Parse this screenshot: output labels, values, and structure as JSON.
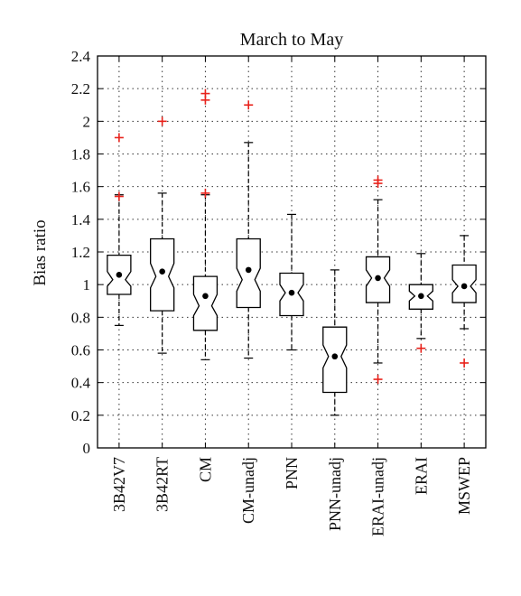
{
  "chart_data": {
    "type": "boxplot",
    "title": "March to May",
    "xlabel": "",
    "ylabel": "Bias ratio",
    "ylim": [
      0,
      2.4
    ],
    "yticks": [
      0,
      0.2,
      0.4,
      0.6,
      0.8,
      1,
      1.2,
      1.4,
      1.6,
      1.8,
      2,
      2.2,
      2.4
    ],
    "ytick_labels": [
      "0",
      "0.2",
      "0.4",
      "0.6",
      "0.8",
      "1",
      "1.2",
      "1.4",
      "1.6",
      "1.8",
      "2",
      "2.2",
      "2.4"
    ],
    "grid": true,
    "notched": true,
    "outlier_color": "#e8221b",
    "box_color": "#000000",
    "categories": [
      "3B42V7",
      "3B42RT",
      "CM",
      "CM-unadj",
      "PNN",
      "PNN-unadj",
      "ERAI-unadj",
      "ERAI",
      "MSWEP"
    ],
    "boxes": [
      {
        "whisker_low": 0.75,
        "q1": 0.94,
        "median": 1.03,
        "q3": 1.18,
        "whisker_high": 1.55,
        "mean": 1.06,
        "notch_low": 0.99,
        "notch_high": 1.08,
        "outliers": [
          1.54,
          1.9
        ]
      },
      {
        "whisker_low": 0.58,
        "q1": 0.84,
        "median": 1.05,
        "q3": 1.28,
        "whisker_high": 1.56,
        "mean": 1.08,
        "notch_low": 0.98,
        "notch_high": 1.13,
        "outliers": [
          2.0
        ]
      },
      {
        "whisker_low": 0.54,
        "q1": 0.72,
        "median": 0.87,
        "q3": 1.05,
        "whisker_high": 1.55,
        "mean": 0.93,
        "notch_low": 0.81,
        "notch_high": 0.94,
        "outliers": [
          1.56,
          2.13,
          2.17
        ]
      },
      {
        "whisker_low": 0.55,
        "q1": 0.86,
        "median": 1.03,
        "q3": 1.28,
        "whisker_high": 1.87,
        "mean": 1.09,
        "notch_low": 0.96,
        "notch_high": 1.1,
        "outliers": [
          2.1
        ]
      },
      {
        "whisker_low": 0.6,
        "q1": 0.81,
        "median": 0.95,
        "q3": 1.07,
        "whisker_high": 1.43,
        "mean": 0.95,
        "notch_low": 0.9,
        "notch_high": 1.0,
        "outliers": []
      },
      {
        "whisker_low": 0.2,
        "q1": 0.34,
        "median": 0.56,
        "q3": 0.74,
        "whisker_high": 1.09,
        "mean": 0.56,
        "notch_low": 0.49,
        "notch_high": 0.63,
        "outliers": []
      },
      {
        "whisker_low": 0.52,
        "q1": 0.89,
        "median": 1.04,
        "q3": 1.17,
        "whisker_high": 1.52,
        "mean": 1.04,
        "notch_low": 0.99,
        "notch_high": 1.09,
        "outliers": [
          0.42,
          1.62,
          1.64
        ]
      },
      {
        "whisker_low": 0.67,
        "q1": 0.85,
        "median": 0.93,
        "q3": 1.0,
        "whisker_high": 1.19,
        "mean": 0.93,
        "notch_low": 0.9,
        "notch_high": 0.96,
        "outliers": [
          0.61
        ]
      },
      {
        "whisker_low": 0.73,
        "q1": 0.89,
        "median": 0.99,
        "q3": 1.12,
        "whisker_high": 1.3,
        "mean": 0.99,
        "notch_low": 0.95,
        "notch_high": 1.03,
        "outliers": [
          0.52
        ]
      }
    ]
  }
}
